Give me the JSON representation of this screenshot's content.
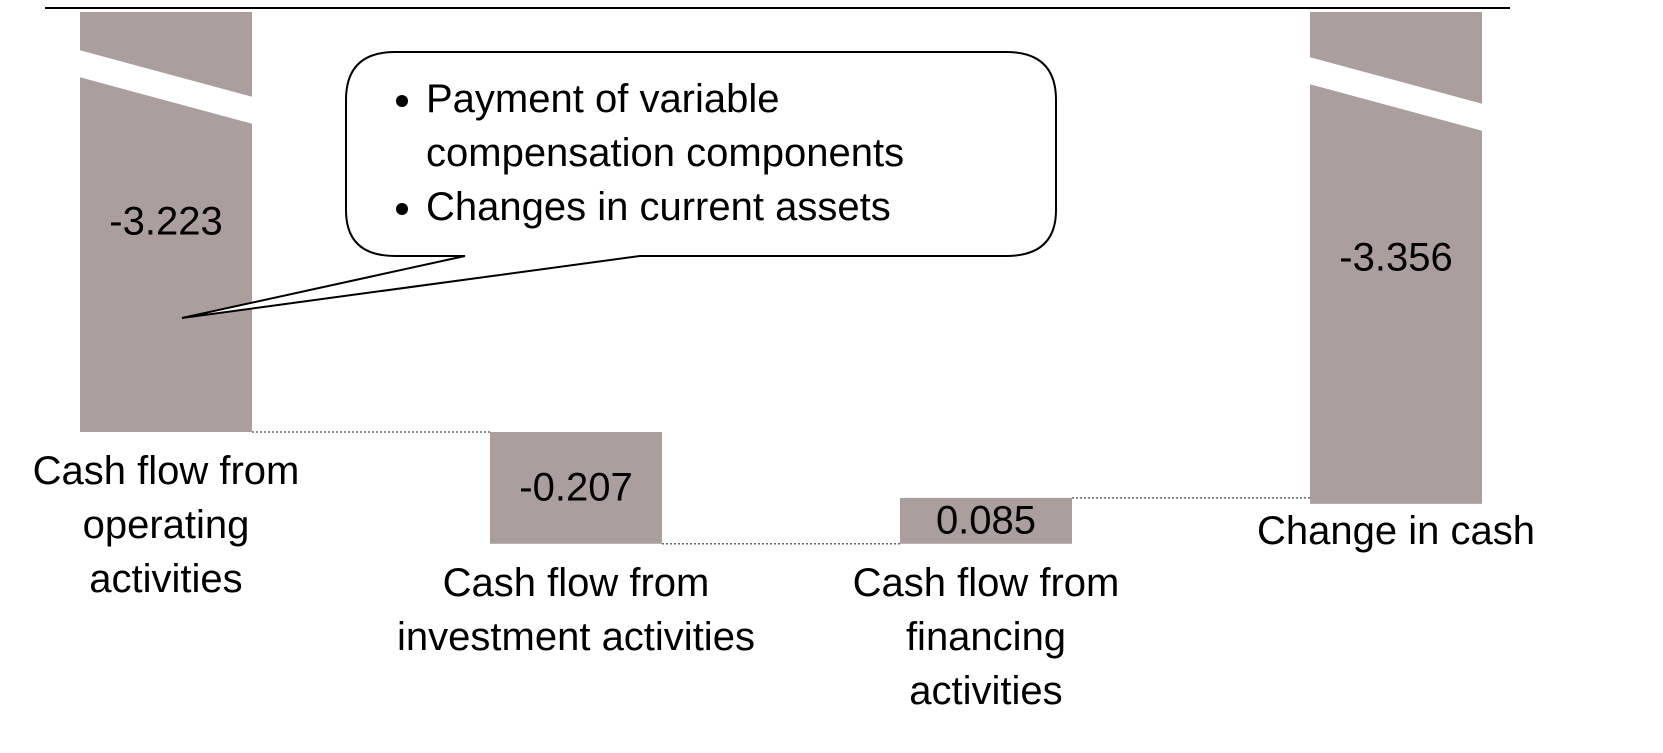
{
  "chart_data": {
    "type": "waterfall",
    "categories": [
      "Cash flow from\noperating\nactivities",
      "Cash flow from\ninvestment activities",
      "Cash flow from\nfinancing\nactivities",
      "Change in cash"
    ],
    "values": [
      -3.223,
      -0.207,
      0.085,
      -3.356
    ],
    "total": [
      false,
      false,
      false,
      true
    ],
    "color": "#ab9f9e",
    "annotations": [
      "Payment of variable\ncompensation components",
      "Changes in current assets"
    ]
  }
}
